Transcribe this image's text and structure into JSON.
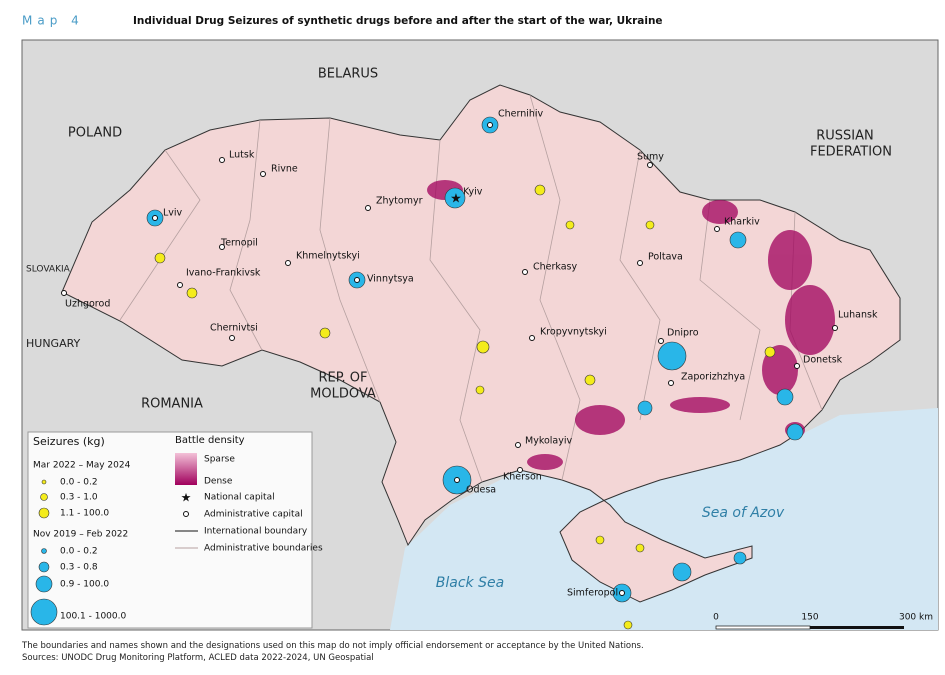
{
  "header": {
    "map_label": "Map 4",
    "title": "Individual Drug Seizures of synthetic drugs before and after the start of the war, Ukraine"
  },
  "countries": {
    "belarus": "BELARUS",
    "poland": "POLAND",
    "russia": [
      "RUSSIAN",
      "FEDERATION"
    ],
    "slovakia": "SLOVAKIA",
    "hungary": "HUNGARY",
    "romania": "ROMANIA",
    "moldova": [
      "REP. OF",
      "MOLDOVA"
    ]
  },
  "seas": {
    "black_sea": "Black Sea",
    "azov": "Sea of Azov"
  },
  "cities": [
    "Chernihiv",
    "Sumy",
    "Lutsk",
    "Rivne",
    "Kyiv",
    "Zhytomyr",
    "Lviv",
    "Kharkiv",
    "Ternopil",
    "Khmelnytskyi",
    "Vinnytsya",
    "Cherkasy",
    "Poltava",
    "Ivano-Frankivsk",
    "Uzhgorod",
    "Chernivtsi",
    "Kropyvnytskyi",
    "Dnipro",
    "Luhansk",
    "Donetsk",
    "Zaporizhzhya",
    "Mykolayiv",
    "Kherson",
    "Odesa",
    "Simferopol"
  ],
  "legend": {
    "seizures_title": "Seizures (kg)",
    "period_recent": "Mar 2022 – May 2024",
    "recent_classes": [
      "0.0  -  0.2",
      "0.3  -  1.0",
      "1.1 - 100.0"
    ],
    "period_before": "Nov 2019 – Feb 2022",
    "before_classes": [
      "0.0 - 0.2",
      "0.3 - 0.8",
      "0.9 - 100.0",
      "100.1 - 1000.0"
    ],
    "battle_title": "Battle density",
    "sparse": "Sparse",
    "dense": "Dense",
    "national_capital": "National capital",
    "admin_capital": "Administrative capital",
    "intl_boundary": "International boundary",
    "admin_boundaries": "Administrative boundaries"
  },
  "scale": [
    "0",
    "150",
    "300 km"
  ],
  "footer": [
    "The boundaries and names shown and the designations used on this map do not imply official endorsement or acceptance by the United Nations.",
    "Sources: UNODC Drug Monitoring Platform, ACLED data 2022-2024, UN Geospatial"
  ]
}
